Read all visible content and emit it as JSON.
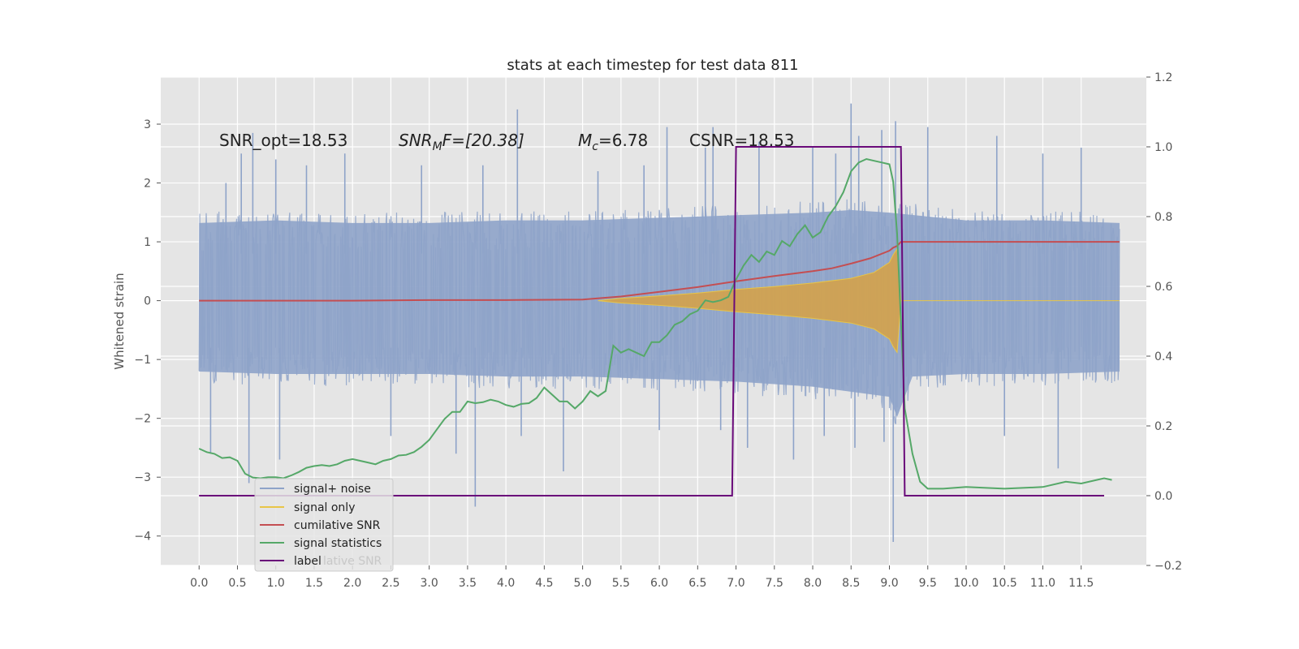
{
  "chart_data": {
    "type": "line",
    "title": "stats at each timestep for test data 811",
    "ylabel": "Whitened strain",
    "xlim": [
      -0.5,
      12.35
    ],
    "ylim": [
      -4.5,
      3.8
    ],
    "y2lim": [
      -0.2,
      1.2
    ],
    "grid": true,
    "x_ticks": [
      "0.0",
      "0.5",
      "1.0",
      "1.5",
      "2.0",
      "2.5",
      "3.0",
      "3.5",
      "4.0",
      "4.5",
      "5.0",
      "5.5",
      "6.0",
      "6.5",
      "7.0",
      "7.5",
      "8.0",
      "8.5",
      "9.0",
      "9.5",
      "10.0",
      "10.5",
      "11.0",
      "11.5"
    ],
    "y_ticks": [
      "3",
      "2",
      "1",
      "0",
      "−1",
      "−2",
      "−3",
      "−4"
    ],
    "y2_ticks": [
      "1.2",
      "1.0",
      "0.8",
      "0.6",
      "0.4",
      "0.2",
      "0.0",
      "−0.2"
    ],
    "annotations": [
      {
        "text": "SNR_opt=18.53"
      },
      {
        "text_main": "SNR",
        "text_sub": "M",
        "text_rest": "F=[20.38]"
      },
      {
        "text_main": "M",
        "text_sub": "c",
        "text_rest": "=6.78"
      },
      {
        "text": "CSNR=18.53"
      }
    ],
    "legend": {
      "placement": "lower-left",
      "entries": [
        {
          "name": "signal+ noise",
          "color": "#8ea3c9"
        },
        {
          "name": "signal only",
          "color": "#e8c547"
        },
        {
          "name": "cumilative SNR",
          "color": "#c44e52"
        },
        {
          "name": "signal statistics",
          "color": "#55a868"
        },
        {
          "name": "label",
          "color": "#6a0a7a"
        }
      ],
      "ghost_text": "lative SNR"
    },
    "series": [
      {
        "name": "signal+ noise",
        "color": "#8ea3c9",
        "axis": "left",
        "x_range": [
          0.0,
          12.0
        ],
        "envelope_upper": [
          [
            0,
            1.5
          ],
          [
            1,
            1.55
          ],
          [
            2,
            1.5
          ],
          [
            3,
            1.5
          ],
          [
            4,
            1.55
          ],
          [
            5,
            1.55
          ],
          [
            6,
            1.6
          ],
          [
            7,
            1.65
          ],
          [
            8,
            1.7
          ],
          [
            8.5,
            1.75
          ],
          [
            9,
            1.7
          ],
          [
            10,
            1.55
          ],
          [
            11,
            1.55
          ],
          [
            12,
            1.5
          ]
        ],
        "envelope_lower": [
          [
            0,
            -1.4
          ],
          [
            1,
            -1.45
          ],
          [
            2,
            -1.45
          ],
          [
            3,
            -1.45
          ],
          [
            4,
            -1.5
          ],
          [
            5,
            -1.5
          ],
          [
            6,
            -1.55
          ],
          [
            7,
            -1.6
          ],
          [
            8,
            -1.7
          ],
          [
            8.5,
            -1.8
          ],
          [
            9,
            -1.9
          ],
          [
            9.1,
            -2.3
          ],
          [
            9.3,
            -1.5
          ],
          [
            10,
            -1.45
          ],
          [
            11,
            -1.45
          ],
          [
            12,
            -1.4
          ]
        ],
        "spikes": [
          [
            0.15,
            -2.6
          ],
          [
            0.35,
            2.0
          ],
          [
            0.55,
            2.5
          ],
          [
            0.65,
            -3.1
          ],
          [
            0.7,
            2.85
          ],
          [
            1.0,
            2.4
          ],
          [
            1.05,
            -2.7
          ],
          [
            1.4,
            2.3
          ],
          [
            1.9,
            2.5
          ],
          [
            2.5,
            -2.3
          ],
          [
            2.9,
            2.3
          ],
          [
            3.35,
            -2.6
          ],
          [
            3.6,
            -3.5
          ],
          [
            3.7,
            2.3
          ],
          [
            4.15,
            3.25
          ],
          [
            4.2,
            -2.3
          ],
          [
            4.75,
            -2.9
          ],
          [
            5.2,
            2.2
          ],
          [
            5.8,
            2.3
          ],
          [
            6.0,
            -2.2
          ],
          [
            6.1,
            2.95
          ],
          [
            6.6,
            2.6
          ],
          [
            6.7,
            2.95
          ],
          [
            6.8,
            -2.2
          ],
          [
            7.15,
            -2.5
          ],
          [
            7.3,
            2.7
          ],
          [
            7.75,
            -2.7
          ],
          [
            8.0,
            2.6
          ],
          [
            8.15,
            -2.3
          ],
          [
            8.3,
            2.5
          ],
          [
            8.5,
            3.35
          ],
          [
            8.55,
            -2.5
          ],
          [
            8.6,
            2.8
          ],
          [
            8.9,
            2.9
          ],
          [
            8.93,
            -2.4
          ],
          [
            9.05,
            -4.1
          ],
          [
            9.08,
            3.05
          ],
          [
            9.5,
            2.95
          ],
          [
            10.4,
            2.8
          ],
          [
            10.5,
            -2.3
          ],
          [
            11.0,
            2.5
          ],
          [
            11.2,
            -2.85
          ],
          [
            11.5,
            2.6
          ]
        ]
      },
      {
        "name": "signal only",
        "color": "#d4a24a",
        "axis": "left",
        "points": [
          [
            5.2,
            0.0
          ],
          [
            5.5,
            0.04
          ],
          [
            6.0,
            0.08
          ],
          [
            6.5,
            0.13
          ],
          [
            7.0,
            0.19
          ],
          [
            7.5,
            0.24
          ],
          [
            8.0,
            0.3
          ],
          [
            8.5,
            0.38
          ],
          [
            8.8,
            0.48
          ],
          [
            9.0,
            0.65
          ],
          [
            9.05,
            0.78
          ],
          [
            9.1,
            0.88
          ],
          [
            9.15,
            0.0
          ],
          [
            12.0,
            0.0
          ]
        ]
      },
      {
        "name": "cumilative SNR",
        "color": "#c44e52",
        "axis": "left",
        "x": [
          0.0,
          1.0,
          2.0,
          3.0,
          4.0,
          5.0,
          5.5,
          6.0,
          6.5,
          7.0,
          7.5,
          8.0,
          8.25,
          8.5,
          8.75,
          9.0,
          9.05,
          9.1,
          9.15,
          12.0
        ],
        "values": [
          0.0,
          0.0,
          0.0,
          0.01,
          0.01,
          0.02,
          0.07,
          0.15,
          0.23,
          0.33,
          0.42,
          0.5,
          0.55,
          0.63,
          0.72,
          0.85,
          0.9,
          0.93,
          1.0,
          1.0
        ]
      },
      {
        "name": "signal statistics",
        "color": "#55a868",
        "axis": "right",
        "x": [
          0.0,
          0.1,
          0.2,
          0.3,
          0.4,
          0.5,
          0.6,
          0.7,
          0.8,
          0.9,
          1.0,
          1.1,
          1.2,
          1.3,
          1.4,
          1.5,
          1.6,
          1.7,
          1.8,
          1.9,
          2.0,
          2.1,
          2.2,
          2.3,
          2.4,
          2.5,
          2.6,
          2.7,
          2.8,
          2.9,
          3.0,
          3.1,
          3.2,
          3.3,
          3.4,
          3.5,
          3.6,
          3.7,
          3.8,
          3.9,
          4.0,
          4.1,
          4.2,
          4.3,
          4.4,
          4.5,
          4.6,
          4.7,
          4.8,
          4.9,
          5.0,
          5.1,
          5.2,
          5.3,
          5.4,
          5.5,
          5.6,
          5.7,
          5.8,
          5.9,
          6.0,
          6.1,
          6.2,
          6.3,
          6.4,
          6.5,
          6.6,
          6.7,
          6.8,
          6.9,
          7.0,
          7.1,
          7.2,
          7.3,
          7.4,
          7.5,
          7.6,
          7.7,
          7.8,
          7.9,
          8.0,
          8.1,
          8.2,
          8.3,
          8.4,
          8.5,
          8.6,
          8.7,
          8.8,
          8.9,
          9.0,
          9.05,
          9.1,
          9.15,
          9.2,
          9.3,
          9.4,
          9.5,
          9.7,
          10.0,
          10.5,
          11.0,
          11.3,
          11.5,
          11.8,
          11.9
        ],
        "values": [
          0.135,
          0.125,
          0.12,
          0.108,
          0.11,
          0.1,
          0.063,
          0.052,
          0.05,
          0.053,
          0.053,
          0.05,
          0.058,
          0.068,
          0.08,
          0.085,
          0.088,
          0.085,
          0.09,
          0.1,
          0.105,
          0.1,
          0.095,
          0.09,
          0.1,
          0.105,
          0.115,
          0.117,
          0.125,
          0.14,
          0.16,
          0.19,
          0.22,
          0.24,
          0.24,
          0.27,
          0.265,
          0.268,
          0.275,
          0.27,
          0.26,
          0.255,
          0.263,
          0.265,
          0.28,
          0.31,
          0.29,
          0.27,
          0.27,
          0.25,
          0.27,
          0.3,
          0.285,
          0.3,
          0.43,
          0.41,
          0.42,
          0.41,
          0.4,
          0.44,
          0.44,
          0.46,
          0.49,
          0.5,
          0.52,
          0.53,
          0.56,
          0.555,
          0.56,
          0.57,
          0.62,
          0.66,
          0.69,
          0.67,
          0.7,
          0.69,
          0.73,
          0.715,
          0.75,
          0.775,
          0.74,
          0.755,
          0.8,
          0.83,
          0.87,
          0.93,
          0.955,
          0.965,
          0.96,
          0.955,
          0.95,
          0.9,
          0.75,
          0.5,
          0.25,
          0.12,
          0.04,
          0.02,
          0.02,
          0.025,
          0.02,
          0.025,
          0.04,
          0.035,
          0.05,
          0.045
        ]
      },
      {
        "name": "label",
        "color": "#6a0a7a",
        "axis": "right",
        "x": [
          0.0,
          6.95,
          7.0,
          9.15,
          9.2,
          11.8
        ],
        "values": [
          0.0,
          0.0,
          1.0,
          1.0,
          0.0,
          0.0
        ]
      }
    ]
  }
}
